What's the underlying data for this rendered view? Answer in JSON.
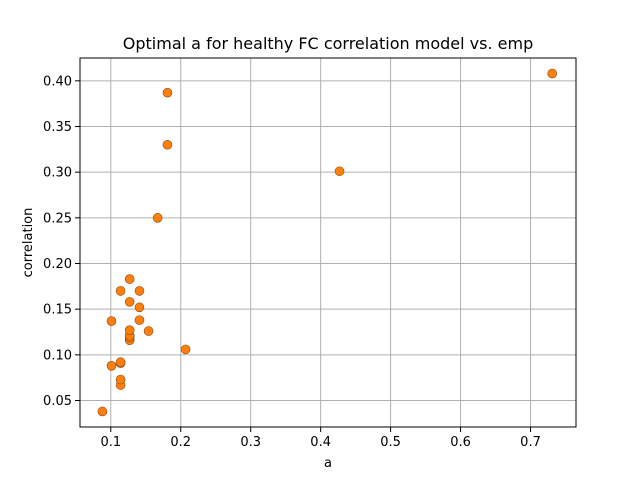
{
  "chart_data": {
    "type": "scatter",
    "title": "Optimal a for healthy FC correlation model vs. emp",
    "xlabel": "a",
    "ylabel": "correlation",
    "xlim": [
      0.056,
      0.765
    ],
    "ylim": [
      0.021,
      0.425
    ],
    "xticks": [
      0.1,
      0.2,
      0.3,
      0.4,
      0.5,
      0.6,
      0.7
    ],
    "xtick_labels": [
      "0.1",
      "0.2",
      "0.3",
      "0.4",
      "0.5",
      "0.6",
      "0.7"
    ],
    "yticks": [
      0.05,
      0.1,
      0.15,
      0.2,
      0.25,
      0.3,
      0.35,
      0.4
    ],
    "ytick_labels": [
      "0.05",
      "0.10",
      "0.15",
      "0.20",
      "0.25",
      "0.30",
      "0.35",
      "0.40"
    ],
    "grid": true,
    "legend": "none",
    "colors": {
      "marker_fill": "#ff7f0e",
      "marker_edge": "#8c4a10",
      "grid": "#b0b0b0",
      "axis": "#000000"
    },
    "points": [
      {
        "x": 0.088,
        "y": 0.038
      },
      {
        "x": 0.101,
        "y": 0.088
      },
      {
        "x": 0.101,
        "y": 0.137
      },
      {
        "x": 0.114,
        "y": 0.067
      },
      {
        "x": 0.114,
        "y": 0.073
      },
      {
        "x": 0.114,
        "y": 0.091
      },
      {
        "x": 0.114,
        "y": 0.092
      },
      {
        "x": 0.114,
        "y": 0.17
      },
      {
        "x": 0.127,
        "y": 0.116
      },
      {
        "x": 0.127,
        "y": 0.119
      },
      {
        "x": 0.127,
        "y": 0.121
      },
      {
        "x": 0.127,
        "y": 0.127
      },
      {
        "x": 0.127,
        "y": 0.158
      },
      {
        "x": 0.127,
        "y": 0.183
      },
      {
        "x": 0.141,
        "y": 0.138
      },
      {
        "x": 0.141,
        "y": 0.152
      },
      {
        "x": 0.141,
        "y": 0.17
      },
      {
        "x": 0.154,
        "y": 0.126
      },
      {
        "x": 0.167,
        "y": 0.25
      },
      {
        "x": 0.181,
        "y": 0.33
      },
      {
        "x": 0.181,
        "y": 0.387
      },
      {
        "x": 0.207,
        "y": 0.106
      },
      {
        "x": 0.427,
        "y": 0.301
      },
      {
        "x": 0.731,
        "y": 0.408
      }
    ]
  }
}
